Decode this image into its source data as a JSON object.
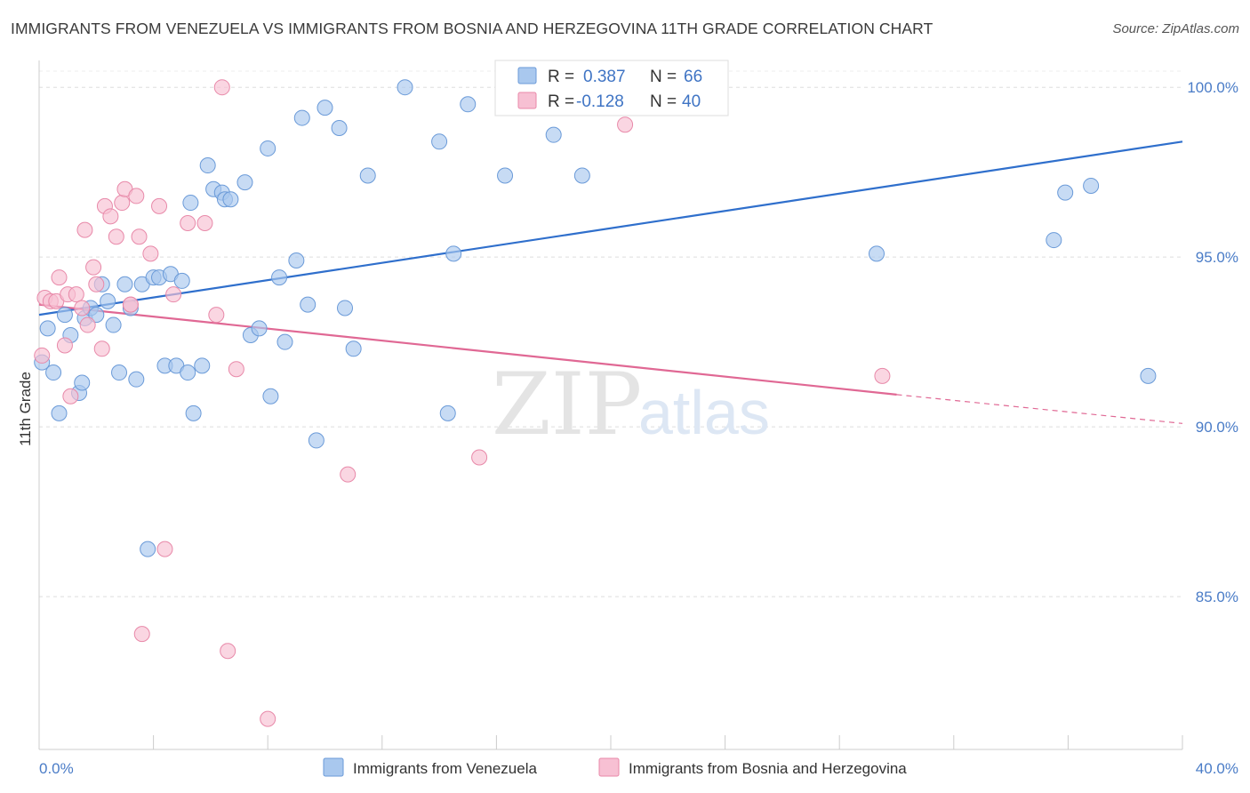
{
  "title": "IMMIGRANTS FROM VENEZUELA VS IMMIGRANTS FROM BOSNIA AND HERZEGOVINA 11TH GRADE CORRELATION CHART",
  "source": "Source: ZipAtlas.com",
  "watermark": {
    "part1": "ZIP",
    "part2": "atlas"
  },
  "colors": {
    "blue_fill": "#a9c8ee",
    "blue_stroke": "#6a9ad8",
    "blue_line": "#2f6fcc",
    "pink_fill": "#f7c0d3",
    "pink_stroke": "#e889a9",
    "pink_line": "#e06894",
    "grid": "#dddddd",
    "tick_label": "#4a7cc7"
  },
  "legend": {
    "rows": [
      {
        "r_label": "R =",
        "r_value": "0.387",
        "n_label": "N =",
        "n_value": "66"
      },
      {
        "r_label": "R =",
        "r_value": "-0.128",
        "n_label": "N =",
        "n_value": "40"
      }
    ]
  },
  "chart_data": {
    "type": "scatter",
    "title": "IMMIGRANTS FROM VENEZUELA VS IMMIGRANTS FROM BOSNIA AND HERZEGOVINA 11TH GRADE CORRELATION CHART",
    "xlabel": "",
    "ylabel": "11th Grade",
    "xlim": [
      0,
      40
    ],
    "ylim": [
      80.5,
      101.0
    ],
    "x_tick_labels": [
      "0.0%",
      "40.0%"
    ],
    "y_ticks": [
      85,
      90,
      95,
      100
    ],
    "y_tick_labels": [
      "85.0%",
      "90.0%",
      "95.0%",
      "100.0%"
    ],
    "grid": true,
    "legend_position": "top-center",
    "series": [
      {
        "name": "Immigrants from Venezuela",
        "color": "#a9c8ee",
        "trend": {
          "x": [
            0,
            40
          ],
          "y": [
            93.3,
            98.4
          ]
        },
        "points": [
          [
            0.3,
            92.9
          ],
          [
            0.5,
            91.6
          ],
          [
            0.7,
            90.4
          ],
          [
            0.9,
            93.3
          ],
          [
            1.1,
            92.7
          ],
          [
            1.4,
            91.0
          ],
          [
            1.5,
            91.3
          ],
          [
            1.6,
            93.2
          ],
          [
            1.8,
            93.5
          ],
          [
            2.0,
            93.3
          ],
          [
            2.2,
            94.2
          ],
          [
            2.4,
            93.7
          ],
          [
            2.6,
            93.0
          ],
          [
            2.8,
            91.6
          ],
          [
            3.0,
            94.2
          ],
          [
            3.2,
            93.5
          ],
          [
            3.4,
            91.4
          ],
          [
            3.6,
            94.2
          ],
          [
            3.8,
            86.4
          ],
          [
            4.0,
            94.4
          ],
          [
            4.2,
            94.4
          ],
          [
            4.4,
            91.8
          ],
          [
            4.6,
            94.5
          ],
          [
            4.8,
            91.8
          ],
          [
            5.0,
            94.3
          ],
          [
            5.2,
            91.6
          ],
          [
            5.3,
            96.6
          ],
          [
            5.4,
            90.4
          ],
          [
            5.7,
            91.8
          ],
          [
            5.9,
            97.7
          ],
          [
            6.1,
            97.0
          ],
          [
            6.4,
            96.9
          ],
          [
            6.5,
            96.7
          ],
          [
            6.7,
            96.7
          ],
          [
            7.2,
            97.2
          ],
          [
            7.4,
            92.7
          ],
          [
            7.7,
            92.9
          ],
          [
            8.0,
            98.2
          ],
          [
            8.1,
            90.9
          ],
          [
            8.4,
            94.4
          ],
          [
            8.6,
            92.5
          ],
          [
            9.0,
            94.9
          ],
          [
            9.2,
            99.1
          ],
          [
            9.4,
            93.6
          ],
          [
            9.7,
            89.6
          ],
          [
            10.0,
            99.4
          ],
          [
            10.5,
            98.8
          ],
          [
            10.7,
            93.5
          ],
          [
            11.0,
            92.3
          ],
          [
            11.5,
            97.4
          ],
          [
            12.8,
            100.0
          ],
          [
            14.0,
            98.4
          ],
          [
            14.3,
            90.4
          ],
          [
            14.5,
            95.1
          ],
          [
            15.0,
            99.5
          ],
          [
            16.3,
            97.4
          ],
          [
            17.2,
            100.0
          ],
          [
            18.0,
            98.6
          ],
          [
            19.0,
            97.4
          ],
          [
            20.4,
            100.0
          ],
          [
            29.3,
            95.1
          ],
          [
            35.5,
            95.5
          ],
          [
            35.9,
            96.9
          ],
          [
            36.8,
            97.1
          ],
          [
            38.8,
            91.5
          ],
          [
            0.1,
            91.9
          ]
        ]
      },
      {
        "name": "Immigrants from Bosnia and Herzegovina",
        "color": "#f7c0d3",
        "trend": {
          "x": [
            0,
            30.0
          ],
          "y": [
            93.6,
            90.95
          ]
        },
        "trend_dashed": {
          "x": [
            30.0,
            40
          ],
          "y": [
            90.95,
            90.1
          ]
        },
        "points": [
          [
            0.1,
            92.1
          ],
          [
            0.2,
            93.8
          ],
          [
            0.4,
            93.7
          ],
          [
            0.6,
            93.7
          ],
          [
            0.7,
            94.4
          ],
          [
            0.9,
            92.4
          ],
          [
            1.0,
            93.9
          ],
          [
            1.1,
            90.9
          ],
          [
            1.3,
            93.9
          ],
          [
            1.5,
            93.5
          ],
          [
            1.6,
            95.8
          ],
          [
            1.7,
            93.0
          ],
          [
            1.9,
            94.7
          ],
          [
            2.0,
            94.2
          ],
          [
            2.2,
            92.3
          ],
          [
            2.3,
            96.5
          ],
          [
            2.5,
            96.2
          ],
          [
            2.7,
            95.6
          ],
          [
            2.9,
            96.6
          ],
          [
            3.0,
            97.0
          ],
          [
            3.2,
            93.6
          ],
          [
            3.4,
            96.8
          ],
          [
            3.5,
            95.6
          ],
          [
            3.6,
            83.9
          ],
          [
            3.9,
            95.1
          ],
          [
            4.2,
            96.5
          ],
          [
            4.4,
            86.4
          ],
          [
            4.7,
            93.9
          ],
          [
            5.2,
            96.0
          ],
          [
            5.8,
            96.0
          ],
          [
            6.2,
            93.3
          ],
          [
            6.4,
            100.0
          ],
          [
            6.6,
            83.4
          ],
          [
            6.9,
            91.7
          ],
          [
            8.0,
            81.4
          ],
          [
            10.8,
            88.6
          ],
          [
            15.4,
            89.1
          ],
          [
            3.2,
            93.6
          ],
          [
            29.5,
            91.5
          ],
          [
            20.5,
            98.9
          ]
        ]
      }
    ]
  },
  "bottom_legend": {
    "items": [
      {
        "label": "Immigrants from Venezuela"
      },
      {
        "label": "Immigrants from Bosnia and Herzegovina"
      }
    ]
  }
}
